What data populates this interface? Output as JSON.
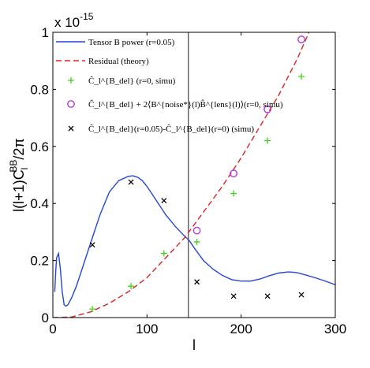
{
  "chart_data": {
    "type": "line",
    "xlabel": "l",
    "ylabel": "l(l+1)C_l^BB/2π",
    "ylabel_parts": {
      "main": "l(l+1)C",
      "sub": "l",
      "sup": "BB",
      "tail": "/2π"
    },
    "y_multiplier": "x 10",
    "y_multiplier_exp": "-15",
    "xlim": [
      0,
      300
    ],
    "ylim": [
      0,
      1
    ],
    "x_ticks": [
      0,
      100,
      200,
      300
    ],
    "x_tick_labels": [
      "0",
      "100",
      "200",
      "300"
    ],
    "y_ticks": [
      0,
      0.2,
      0.4,
      0.6,
      0.8,
      1
    ],
    "y_tick_labels": [
      "0",
      "0.2",
      "0.4",
      "0.6",
      "0.8",
      "1"
    ],
    "vline_x": 144,
    "grid": false,
    "legend_position": "top-left",
    "series": [
      {
        "name": "Tensor B power (r=0.05)",
        "kind": "line",
        "color": "#2545d8",
        "style": "solid",
        "x": [
          2,
          3,
          4,
          6,
          8,
          10,
          12,
          14,
          16,
          20,
          25,
          30,
          40,
          50,
          60,
          70,
          80,
          85,
          90,
          95,
          100,
          110,
          120,
          130,
          140,
          145,
          150,
          160,
          170,
          180,
          190,
          200,
          210,
          220,
          230,
          240,
          250,
          255,
          260,
          270,
          280,
          290,
          300
        ],
        "y": [
          0.09,
          0.16,
          0.21,
          0.225,
          0.17,
          0.09,
          0.045,
          0.04,
          0.045,
          0.07,
          0.11,
          0.16,
          0.26,
          0.36,
          0.44,
          0.48,
          0.495,
          0.497,
          0.492,
          0.48,
          0.46,
          0.41,
          0.36,
          0.32,
          0.285,
          0.27,
          0.245,
          0.2,
          0.17,
          0.148,
          0.133,
          0.128,
          0.128,
          0.135,
          0.147,
          0.156,
          0.16,
          0.159,
          0.157,
          0.148,
          0.138,
          0.127,
          0.115
        ]
      },
      {
        "name": "Residual (theory)",
        "kind": "line",
        "color": "#e02020",
        "style": "dashed",
        "x": [
          0,
          20,
          40,
          60,
          80,
          100,
          120,
          140,
          160,
          180,
          200,
          220,
          240,
          260,
          272
        ],
        "y": [
          0,
          0.002,
          0.02,
          0.05,
          0.09,
          0.14,
          0.21,
          0.28,
          0.37,
          0.46,
          0.56,
          0.67,
          0.78,
          0.91,
          1.0
        ]
      },
      {
        "name": "Ĉ_l^{B_del} (r=0, simu)",
        "kind": "markers",
        "marker": "plus",
        "color": "#44d11a",
        "x": [
          42,
          83,
          118,
          153,
          192,
          228,
          264
        ],
        "y": [
          0.03,
          0.11,
          0.225,
          0.265,
          0.435,
          0.62,
          0.845
        ]
      },
      {
        "name": "Ĉ_l^{B_del} + 2⟨B^{noise*}(l)B̂^{lens}(l)⟩(r=0, simu)",
        "kind": "markers",
        "marker": "circle",
        "color": "#b53ad8",
        "x": [
          153,
          192,
          228,
          264
        ],
        "y": [
          0.305,
          0.505,
          0.73,
          0.975
        ]
      },
      {
        "name": "Ĉ_l^{B_del}(r=0.05)-Ĉ_l^{B_del}(r=0) (simu)",
        "kind": "markers",
        "marker": "cross",
        "color": "#000000",
        "x": [
          42,
          83,
          118,
          153,
          192,
          228,
          264
        ],
        "y": [
          0.255,
          0.475,
          0.41,
          0.125,
          0.075,
          0.075,
          0.08
        ]
      }
    ]
  }
}
